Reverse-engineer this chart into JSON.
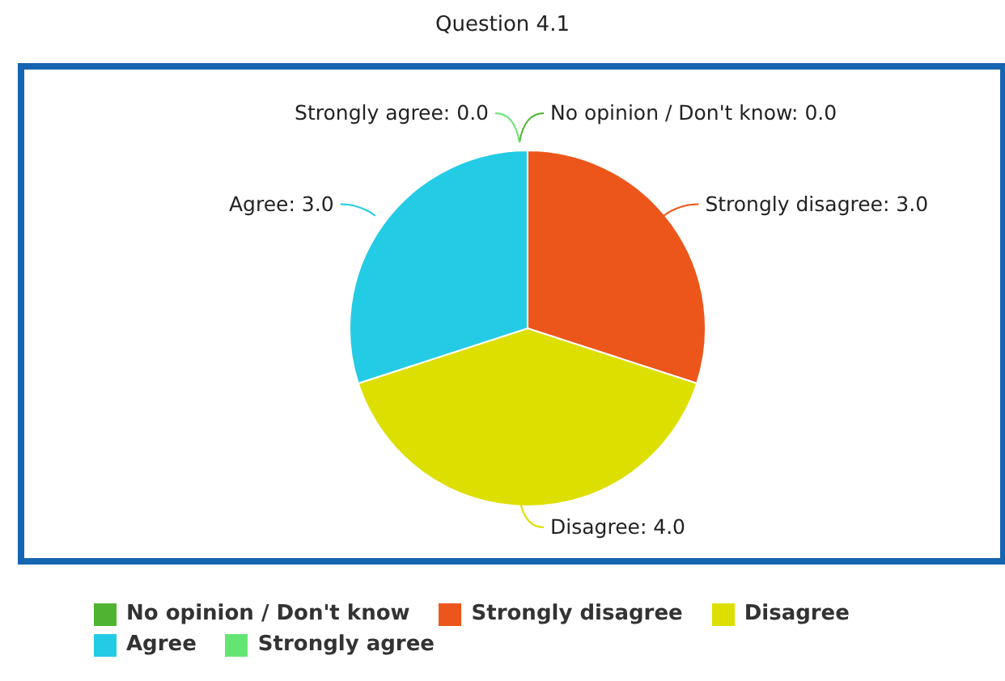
{
  "chart_data": {
    "type": "pie",
    "title": "Question 4.1",
    "categories": [
      "No opinion / Don't know",
      "Strongly disagree",
      "Disagree",
      "Agree",
      "Strongly agree"
    ],
    "values": [
      0,
      3,
      4,
      3,
      0
    ],
    "value_labels": [
      "No opinion / Don't know: 0.0",
      "Strongly disagree: 3.0",
      "Disagree: 4.0",
      "Agree: 3.0",
      "Strongly agree: 0.0"
    ],
    "colors": [
      "#50b432",
      "#ed561b",
      "#dddf00",
      "#24cbe5",
      "#64e572"
    ],
    "legend": "bottom"
  }
}
